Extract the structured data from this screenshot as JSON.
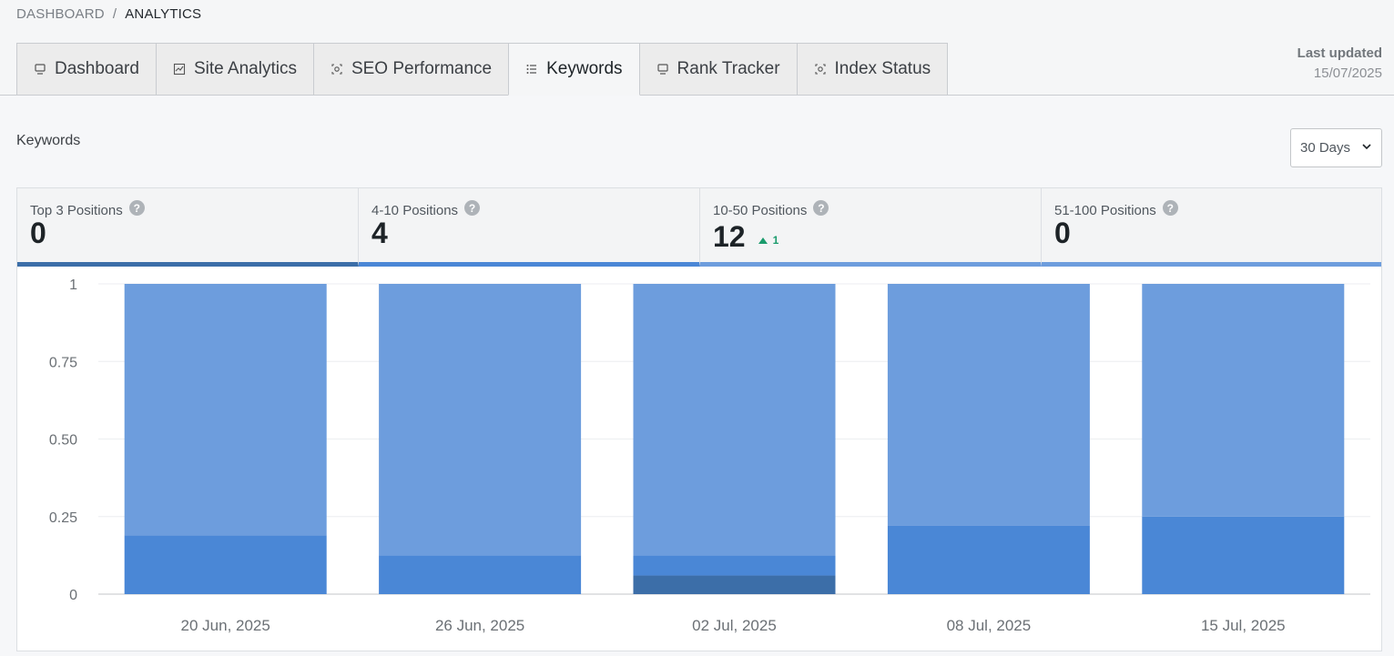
{
  "breadcrumb": {
    "parent": "DASHBOARD",
    "separator": "/",
    "current": "ANALYTICS"
  },
  "tabs": [
    {
      "label": "Dashboard",
      "icon": "monitor-icon",
      "active": false
    },
    {
      "label": "Site Analytics",
      "icon": "line-chart-icon",
      "active": false
    },
    {
      "label": "SEO Performance",
      "icon": "target-icon",
      "active": false
    },
    {
      "label": "Keywords",
      "icon": "list-icon",
      "active": true
    },
    {
      "label": "Rank Tracker",
      "icon": "monitor-icon",
      "active": false
    },
    {
      "label": "Index Status",
      "icon": "target-icon",
      "active": false
    }
  ],
  "last_updated": {
    "label": "Last updated",
    "value": "15/07/2025"
  },
  "section": {
    "title": "Keywords"
  },
  "range_select": {
    "value": "30 Days"
  },
  "stats": [
    {
      "label": "Top 3 Positions",
      "value": "0",
      "delta": "",
      "help_icon": "question-icon"
    },
    {
      "label": "4-10 Positions",
      "value": "4",
      "delta": "",
      "help_icon": "question-icon"
    },
    {
      "label": "10-50 Positions",
      "value": "12",
      "delta": "1",
      "delta_direction": "up",
      "help_icon": "question-icon"
    },
    {
      "label": "51-100 Positions",
      "value": "0",
      "delta": "",
      "help_icon": "question-icon"
    }
  ],
  "colors": {
    "top3": "#3c6ea8",
    "pos4_10": "#4a87d6",
    "pos10_50": "#6d9ddd",
    "positive": "#1a9b6c"
  },
  "chart_data": {
    "type": "bar",
    "stacked": true,
    "normalized": true,
    "categories": [
      "20 Jun, 2025",
      "26 Jun, 2025",
      "02 Jul, 2025",
      "08 Jul, 2025",
      "15 Jul, 2025"
    ],
    "series": [
      {
        "key": "top3",
        "values": [
          0,
          0,
          0.06,
          0,
          0
        ]
      },
      {
        "key": "pos4_10",
        "values": [
          0.19,
          0.125,
          0.065,
          0.22,
          0.25
        ]
      },
      {
        "key": "pos10_50",
        "values": [
          0.81,
          0.875,
          0.875,
          0.78,
          0.75
        ]
      }
    ],
    "yticks": [
      "0",
      "0.25",
      "0.50",
      "0.75",
      "1"
    ],
    "ylim": [
      0,
      1
    ],
    "grid": true,
    "legend": "none"
  }
}
